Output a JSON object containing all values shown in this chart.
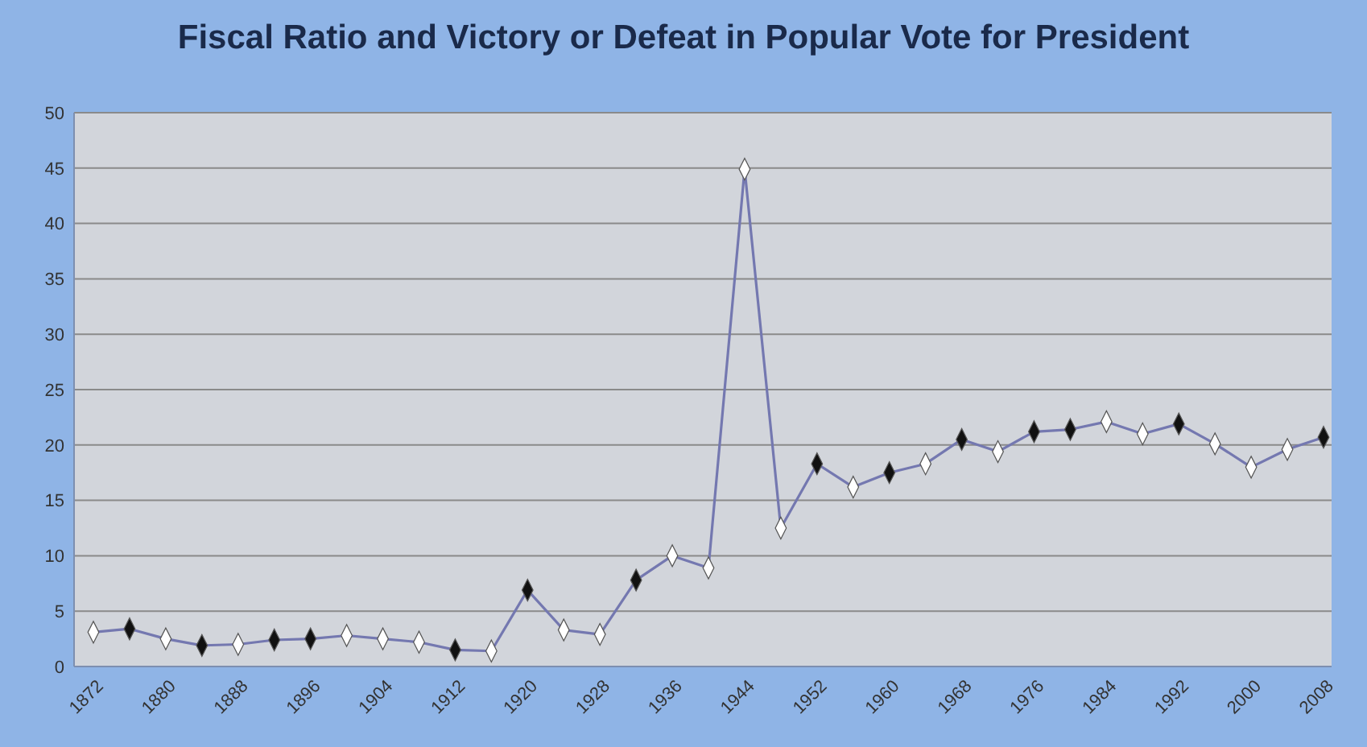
{
  "chart_data": {
    "type": "line",
    "title": "Fiscal Ratio and Victory or Defeat in Popular Vote for President",
    "categories": [
      "1872",
      null,
      "1880",
      null,
      "1888",
      null,
      "1896",
      null,
      "1904",
      null,
      "1912",
      null,
      "1920",
      null,
      "1928",
      null,
      "1936",
      null,
      "1944",
      null,
      "1952",
      null,
      "1960",
      null,
      "1968",
      null,
      "1976",
      null,
      "1984",
      null,
      "1992",
      null,
      "2000",
      null,
      "2008"
    ],
    "values": [
      3.1,
      3.4,
      2.5,
      1.9,
      2.0,
      2.4,
      2.5,
      2.8,
      2.5,
      2.2,
      1.5,
      1.4,
      6.9,
      3.3,
      2.9,
      7.8,
      10.0,
      8.9,
      44.9,
      12.5,
      18.3,
      16.2,
      17.5,
      18.3,
      20.5,
      19.4,
      21.2,
      21.4,
      22.1,
      21.0,
      21.9,
      20.1,
      18.0,
      19.6,
      20.7
    ],
    "color": "#7478b0",
    "colors": [
      "#ffffff",
      "#111111",
      "#ffffff",
      "#111111",
      "#ffffff",
      "#111111",
      "#111111",
      "#ffffff",
      "#ffffff",
      "#ffffff",
      "#111111",
      "#ffffff",
      "#111111",
      "#ffffff",
      "#ffffff",
      "#111111",
      "#ffffff",
      "#ffffff",
      "#ffffff",
      "#ffffff",
      "#111111",
      "#ffffff",
      "#111111",
      "#ffffff",
      "#111111",
      "#ffffff",
      "#111111",
      "#111111",
      "#ffffff",
      "#ffffff",
      "#111111",
      "#ffffff",
      "#ffffff",
      "#ffffff",
      "#111111"
    ],
    "ylim": [
      0,
      50
    ],
    "yticks": [
      0,
      5,
      10,
      15,
      20,
      25,
      30,
      35,
      40,
      45,
      50
    ],
    "grid": "y",
    "marker": "diamond",
    "line_style": "solid"
  }
}
